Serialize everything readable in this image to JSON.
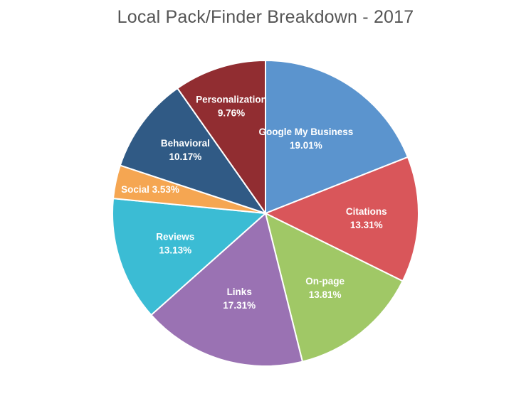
{
  "chart_data": {
    "type": "pie",
    "title": "Local Pack/Finder Breakdown - 2017",
    "start_angle_deg": 0,
    "direction": "clockwise",
    "slices": [
      {
        "label": "Google My Business",
        "value": 19.01,
        "display": "19.01%",
        "color": "#5b94ce"
      },
      {
        "label": "Citations",
        "value": 13.31,
        "display": "13.31%",
        "color": "#d9565a"
      },
      {
        "label": "On-page",
        "value": 13.81,
        "display": "13.81%",
        "color": "#a0c866"
      },
      {
        "label": "Links",
        "value": 17.31,
        "display": "17.31%",
        "color": "#9a72b3"
      },
      {
        "label": "Reviews",
        "value": 13.13,
        "display": "13.13%",
        "color": "#3bbcd4"
      },
      {
        "label": "Social",
        "value": 3.53,
        "display": "3.53%",
        "color": "#f5a652"
      },
      {
        "label": "Behavioral",
        "value": 10.17,
        "display": "10.17%",
        "color": "#305a85"
      },
      {
        "label": "Personalization",
        "value": 9.76,
        "display": "9.76%",
        "color": "#912d31"
      }
    ]
  }
}
